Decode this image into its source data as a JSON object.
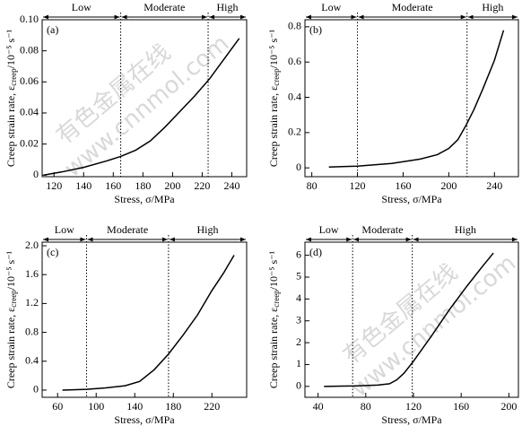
{
  "chart_data": [
    {
      "type": "line",
      "panel_label": "(a)",
      "xlabel": "Stress, σ/MPa",
      "ylabel": {
        "text": "Creep strain rate, ε",
        "sub": "creep",
        "rest": "/10⁻⁵ s⁻¹"
      },
      "region_labels": [
        "Low",
        "Moderate",
        "High"
      ],
      "boundaries": [
        165,
        224
      ],
      "x": [
        113,
        125,
        140,
        155,
        165,
        175,
        185,
        195,
        205,
        215,
        225,
        235,
        245
      ],
      "values": [
        0,
        0.002,
        0.005,
        0.009,
        0.012,
        0.016,
        0.022,
        0.031,
        0.041,
        0.051,
        0.062,
        0.075,
        0.088
      ],
      "color": "#000000",
      "xlim": [
        112,
        250
      ],
      "ylim": [
        -0.001,
        0.1
      ],
      "xticks": [
        120,
        140,
        160,
        180,
        200,
        220,
        240
      ],
      "yticks": [
        0,
        0.02,
        0.04,
        0.06,
        0.08,
        {
          "value": 0.1,
          "label": "0.10"
        }
      ]
    },
    {
      "type": "line",
      "panel_label": "(b)",
      "xlabel": "Stress, σ/MPa",
      "ylabel": {
        "text": "Creep strain rate, ε",
        "sub": "creep",
        "rest": "/10⁻⁵ s⁻¹"
      },
      "region_labels": [
        "Low",
        "Moderate",
        "High"
      ],
      "boundaries": [
        120,
        216
      ],
      "x": [
        95,
        120,
        150,
        175,
        190,
        200,
        208,
        215,
        222,
        230,
        240,
        248
      ],
      "values": [
        0.005,
        0.01,
        0.025,
        0.05,
        0.075,
        0.11,
        0.16,
        0.24,
        0.33,
        0.45,
        0.61,
        0.78
      ],
      "color": "#000000",
      "xlim": [
        74,
        261
      ],
      "ylim": [
        -0.05,
        0.84
      ],
      "xticks": [
        80,
        120,
        160,
        200,
        240
      ],
      "yticks": [
        0,
        0.2,
        0.4,
        0.6,
        0.8
      ]
    },
    {
      "type": "line",
      "panel_label": "(c)",
      "xlabel": "Stress, σ/MPa",
      "ylabel": {
        "text": "Creep strain rate, ε",
        "sub": "creep",
        "rest": "/10⁻⁵ s⁻¹"
      },
      "region_labels": [
        "Low",
        "Moderate",
        "High"
      ],
      "boundaries": [
        90,
        175
      ],
      "x": [
        65,
        90,
        110,
        130,
        145,
        160,
        175,
        190,
        205,
        220,
        232,
        243
      ],
      "values": [
        0,
        0.01,
        0.03,
        0.06,
        0.12,
        0.28,
        0.5,
        0.76,
        1.04,
        1.38,
        1.62,
        1.87
      ],
      "color": "#000000",
      "xlim": [
        44,
        256
      ],
      "ylim": [
        -0.1,
        2.05
      ],
      "xticks": [
        60,
        100,
        140,
        180,
        220
      ],
      "yticks": [
        0,
        0.4,
        0.8,
        1.2,
        1.6,
        {
          "value": 2,
          "label": "2.0"
        }
      ]
    },
    {
      "type": "line",
      "panel_label": "(d)",
      "xlabel": "Stress, σ/MPa",
      "ylabel": {
        "text": "Creep strain rate, ε",
        "sub": "creep",
        "rest": "/10⁻⁵ s⁻¹"
      },
      "region_labels": [
        "Low",
        "Moderate",
        "High"
      ],
      "boundaries": [
        69,
        119
      ],
      "x": [
        45,
        70,
        90,
        100,
        106,
        112,
        120,
        135,
        150,
        165,
        178,
        187
      ],
      "values": [
        0,
        0.02,
        0.06,
        0.12,
        0.3,
        0.6,
        1.15,
        2.3,
        3.5,
        4.6,
        5.5,
        6.1
      ],
      "color": "#000000",
      "xlim": [
        29,
        208
      ],
      "ylim": [
        -0.5,
        6.6
      ],
      "xticks": [
        40,
        80,
        120,
        160,
        200
      ],
      "yticks": [
        0,
        1,
        2,
        3,
        4,
        5,
        6
      ]
    }
  ],
  "watermark": [
    "有色金属在线",
    "www.cnnmol.com"
  ]
}
